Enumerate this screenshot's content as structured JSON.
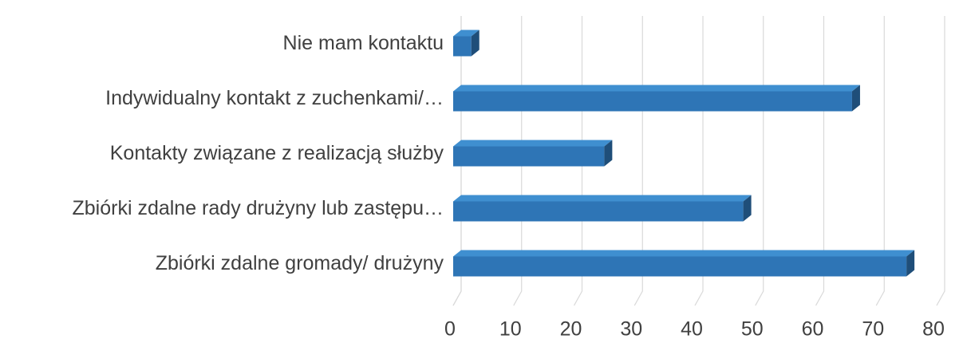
{
  "chart_data": {
    "type": "bar3d_horizontal",
    "categories": [
      "Nie mam kontaktu",
      "Indywidualny kontakt z zuchenkami/…",
      "Kontakty związane z realizacją służby",
      "Zbiórki zdalne rady drużyny lub zastępu…",
      "Zbiórki zdalne gromady/ drużyny"
    ],
    "values": [
      3,
      66,
      25,
      48,
      75
    ],
    "color": "#2e75b6",
    "xlim": [
      0,
      80
    ],
    "xticks": [
      0,
      10,
      20,
      30,
      40,
      50,
      60,
      70,
      80
    ],
    "grid": true
  }
}
